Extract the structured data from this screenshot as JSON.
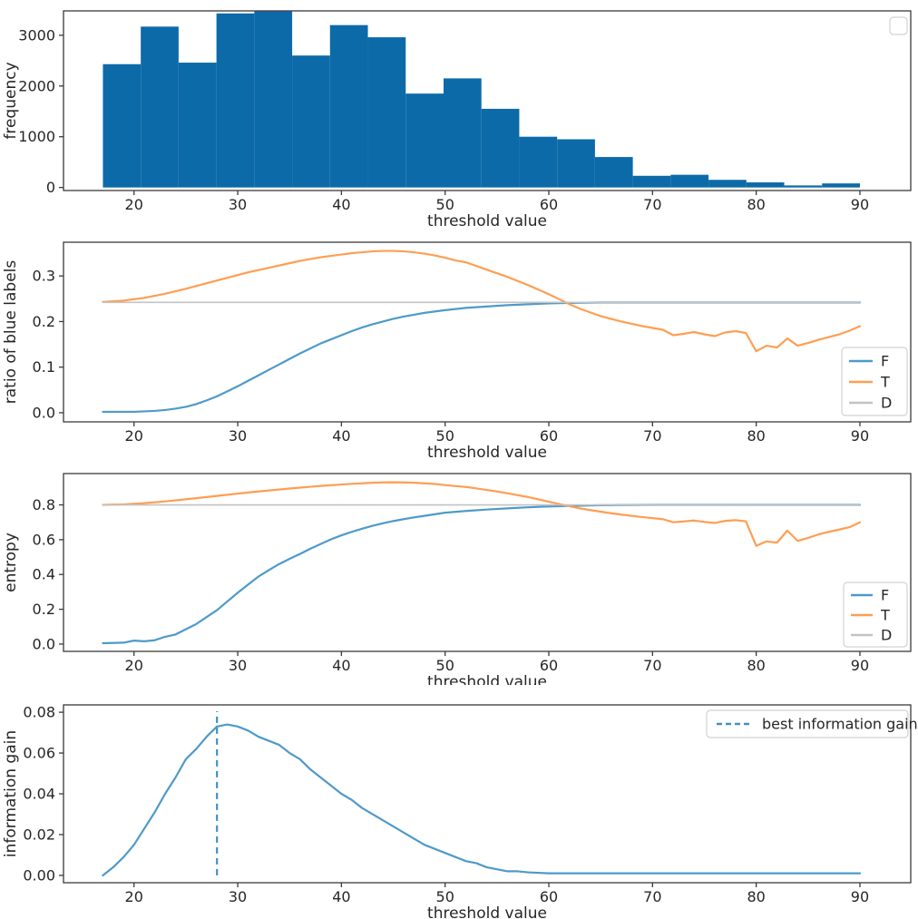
{
  "figure": {
    "background": "#ffffff",
    "text_color": "#262626",
    "spine_color": "#3a3a3a",
    "tick_color": "#3a3a3a"
  },
  "chart_data": [
    {
      "type": "bar",
      "name": "frequency-histogram",
      "xlabel": "threshold value",
      "ylabel": "frequency",
      "xlim": [
        13.2,
        94.9
      ],
      "ylim": [
        -60,
        3480
      ],
      "xticks": [
        20,
        30,
        40,
        50,
        60,
        70,
        80,
        90
      ],
      "yticks": [
        0,
        1000,
        2000,
        3000
      ],
      "ytick_labels": [
        "0",
        "1000",
        "2000",
        "3000"
      ],
      "bar_color": "#0d6aa8",
      "bin_start": 17,
      "bin_width": 3.65,
      "values": [
        2430,
        3170,
        2460,
        3430,
        3470,
        2600,
        3200,
        2960,
        1850,
        2150,
        1550,
        1000,
        950,
        600,
        230,
        250,
        150,
        100,
        40,
        80
      ],
      "legend": {
        "entries": []
      }
    },
    {
      "type": "line",
      "name": "ratio-of-blue-labels",
      "xlabel": "threshold value",
      "ylabel": "ratio of blue labels",
      "xlim": [
        13.2,
        94.9
      ],
      "ylim": [
        -0.02,
        0.374
      ],
      "xticks": [
        20,
        30,
        40,
        50,
        60,
        70,
        80,
        90
      ],
      "yticks": [
        0.0,
        0.1,
        0.2,
        0.3
      ],
      "ytick_labels": [
        "0.0",
        "0.1",
        "0.2",
        "0.3"
      ],
      "series": [
        {
          "name": "F",
          "color": "#4e9ac9",
          "width": 2.2,
          "x": [
            17,
            19,
            20,
            21,
            22,
            23,
            24,
            25,
            26,
            27,
            28,
            29,
            30,
            31,
            32,
            33,
            34,
            35,
            36,
            37,
            38,
            39,
            40,
            41,
            42,
            43,
            44,
            45,
            46,
            47,
            48,
            50,
            52,
            54,
            56,
            58,
            60,
            62,
            65,
            70,
            75,
            80,
            85,
            90
          ],
          "y": [
            0.002,
            0.002,
            0.002,
            0.003,
            0.004,
            0.006,
            0.009,
            0.013,
            0.019,
            0.027,
            0.036,
            0.047,
            0.058,
            0.07,
            0.082,
            0.094,
            0.106,
            0.118,
            0.13,
            0.141,
            0.152,
            0.161,
            0.17,
            0.179,
            0.187,
            0.194,
            0.2,
            0.206,
            0.211,
            0.215,
            0.219,
            0.225,
            0.23,
            0.233,
            0.236,
            0.238,
            0.24,
            0.241,
            0.242,
            0.242,
            0.242,
            0.242,
            0.242,
            0.242
          ]
        },
        {
          "name": "T",
          "color": "#ff9e52",
          "width": 2.2,
          "x": [
            17,
            19,
            21,
            23,
            25,
            27,
            29,
            31,
            33,
            35,
            36,
            37,
            38,
            39,
            40,
            41,
            42,
            43,
            44,
            45,
            46,
            47,
            48,
            49,
            50,
            51,
            52,
            53,
            54,
            55,
            56,
            57,
            58,
            59,
            60,
            61,
            62,
            63,
            64,
            65,
            66,
            67,
            68,
            69,
            70,
            71,
            72,
            73,
            74,
            75,
            76,
            77,
            78,
            79,
            80,
            81,
            82,
            83,
            84,
            85,
            86,
            87,
            88,
            89,
            90
          ],
          "y": [
            0.243,
            0.246,
            0.252,
            0.261,
            0.272,
            0.284,
            0.296,
            0.308,
            0.318,
            0.328,
            0.333,
            0.337,
            0.341,
            0.344,
            0.347,
            0.35,
            0.352,
            0.354,
            0.355,
            0.355,
            0.354,
            0.352,
            0.349,
            0.345,
            0.34,
            0.334,
            0.33,
            0.322,
            0.314,
            0.306,
            0.298,
            0.289,
            0.28,
            0.27,
            0.26,
            0.249,
            0.238,
            0.228,
            0.22,
            0.212,
            0.206,
            0.2,
            0.195,
            0.19,
            0.186,
            0.182,
            0.17,
            0.173,
            0.177,
            0.172,
            0.168,
            0.176,
            0.179,
            0.175,
            0.135,
            0.147,
            0.143,
            0.163,
            0.147,
            0.153,
            0.16,
            0.166,
            0.172,
            0.18,
            0.19
          ]
        },
        {
          "name": "D",
          "color": "#c3c3c3",
          "width": 1.6,
          "x": [
            17,
            90
          ],
          "y": [
            0.242,
            0.242
          ]
        }
      ],
      "legend": {
        "entries": [
          {
            "label": "F",
            "color": "#4e9ac9",
            "dash": false
          },
          {
            "label": "T",
            "color": "#ff9e52",
            "dash": false
          },
          {
            "label": "D",
            "color": "#c3c3c3",
            "dash": false
          }
        ]
      }
    },
    {
      "type": "line",
      "name": "entropy",
      "xlabel": "threshold value",
      "ylabel": "entropy",
      "xlim": [
        13.2,
        94.9
      ],
      "ylim": [
        -0.042,
        0.98
      ],
      "xticks": [
        20,
        30,
        40,
        50,
        60,
        70,
        80,
        90
      ],
      "yticks": [
        0.0,
        0.2,
        0.4,
        0.6,
        0.8
      ],
      "ytick_labels": [
        "0.0",
        "0.2",
        "0.4",
        "0.6",
        "0.8"
      ],
      "series": [
        {
          "name": "F",
          "color": "#4e9ac9",
          "width": 2.2,
          "x": [
            17,
            19,
            20,
            21,
            22,
            23,
            24,
            25,
            26,
            27,
            28,
            29,
            30,
            31,
            32,
            33,
            34,
            35,
            36,
            37,
            38,
            39,
            40,
            41,
            42,
            43,
            44,
            45,
            46,
            47,
            48,
            50,
            52,
            54,
            56,
            58,
            60,
            62,
            65,
            70,
            75,
            80,
            85,
            90
          ],
          "y": [
            0.005,
            0.008,
            0.02,
            0.016,
            0.022,
            0.042,
            0.055,
            0.085,
            0.115,
            0.155,
            0.195,
            0.245,
            0.295,
            0.342,
            0.388,
            0.425,
            0.46,
            0.49,
            0.518,
            0.548,
            0.575,
            0.602,
            0.625,
            0.645,
            0.663,
            0.68,
            0.694,
            0.707,
            0.718,
            0.728,
            0.737,
            0.755,
            0.765,
            0.773,
            0.78,
            0.786,
            0.791,
            0.794,
            0.798,
            0.8,
            0.8,
            0.8,
            0.8,
            0.8
          ]
        },
        {
          "name": "T",
          "color": "#ff9e52",
          "width": 2.2,
          "x": [
            17,
            19,
            21,
            23,
            25,
            27,
            29,
            31,
            33,
            35,
            36,
            37,
            38,
            39,
            40,
            41,
            42,
            43,
            44,
            45,
            46,
            47,
            48,
            49,
            50,
            51,
            52,
            53,
            54,
            55,
            56,
            57,
            58,
            59,
            60,
            61,
            62,
            63,
            64,
            65,
            66,
            67,
            68,
            69,
            70,
            71,
            72,
            73,
            74,
            75,
            76,
            77,
            78,
            79,
            80,
            81,
            82,
            83,
            84,
            85,
            86,
            87,
            88,
            89,
            90
          ],
          "y": [
            0.8,
            0.803,
            0.81,
            0.82,
            0.832,
            0.845,
            0.858,
            0.871,
            0.883,
            0.894,
            0.899,
            0.904,
            0.909,
            0.913,
            0.917,
            0.921,
            0.924,
            0.927,
            0.929,
            0.93,
            0.929,
            0.927,
            0.924,
            0.92,
            0.914,
            0.908,
            0.903,
            0.895,
            0.886,
            0.877,
            0.867,
            0.856,
            0.845,
            0.832,
            0.818,
            0.805,
            0.792,
            0.78,
            0.77,
            0.761,
            0.752,
            0.744,
            0.737,
            0.73,
            0.724,
            0.718,
            0.7,
            0.705,
            0.71,
            0.702,
            0.696,
            0.708,
            0.712,
            0.706,
            0.565,
            0.59,
            0.583,
            0.652,
            0.593,
            0.61,
            0.63,
            0.645,
            0.658,
            0.672,
            0.7
          ]
        },
        {
          "name": "D",
          "color": "#c3c3c3",
          "width": 1.6,
          "x": [
            17,
            90
          ],
          "y": [
            0.8,
            0.8
          ]
        }
      ],
      "legend": {
        "entries": [
          {
            "label": "F",
            "color": "#4e9ac9",
            "dash": false
          },
          {
            "label": "T",
            "color": "#ff9e52",
            "dash": false
          },
          {
            "label": "D",
            "color": "#c3c3c3",
            "dash": false
          }
        ]
      }
    },
    {
      "type": "line",
      "name": "information-gain",
      "xlabel": "threshold value",
      "ylabel": "information gain",
      "xlim": [
        13.2,
        94.9
      ],
      "ylim": [
        -0.0036,
        0.0836
      ],
      "xticks": [
        20,
        30,
        40,
        50,
        60,
        70,
        80,
        90
      ],
      "yticks": [
        0.0,
        0.02,
        0.04,
        0.06,
        0.08
      ],
      "ytick_labels": [
        "0.00",
        "0.02",
        "0.04",
        "0.06",
        "0.08"
      ],
      "series": [
        {
          "name": "information gain",
          "color": "#4e9ac9",
          "width": 2.2,
          "x": [
            17,
            18,
            19,
            20,
            21,
            22,
            23,
            24,
            25,
            26,
            27,
            28,
            29,
            30,
            31,
            32,
            33,
            34,
            35,
            36,
            37,
            38,
            39,
            40,
            41,
            42,
            43,
            44,
            45,
            46,
            47,
            48,
            49,
            50,
            51,
            52,
            53,
            54,
            55,
            56,
            57,
            58,
            60,
            62,
            65,
            70,
            75,
            80,
            85,
            90
          ],
          "y": [
            0.0,
            0.004,
            0.009,
            0.015,
            0.023,
            0.031,
            0.04,
            0.048,
            0.057,
            0.062,
            0.068,
            0.073,
            0.074,
            0.073,
            0.071,
            0.068,
            0.066,
            0.064,
            0.06,
            0.057,
            0.052,
            0.048,
            0.044,
            0.04,
            0.037,
            0.033,
            0.03,
            0.027,
            0.024,
            0.021,
            0.018,
            0.015,
            0.013,
            0.011,
            0.009,
            0.007,
            0.006,
            0.004,
            0.003,
            0.002,
            0.002,
            0.0015,
            0.001,
            0.001,
            0.001,
            0.001,
            0.001,
            0.001,
            0.001,
            0.001
          ]
        }
      ],
      "vline": {
        "x": 28,
        "y0": 0.0,
        "y1": 0.0805,
        "color": "#4191c4",
        "dash": true
      },
      "legend": {
        "entries": [
          {
            "label": "best information gain",
            "color": "#4191c4",
            "dash": true
          }
        ]
      }
    }
  ]
}
